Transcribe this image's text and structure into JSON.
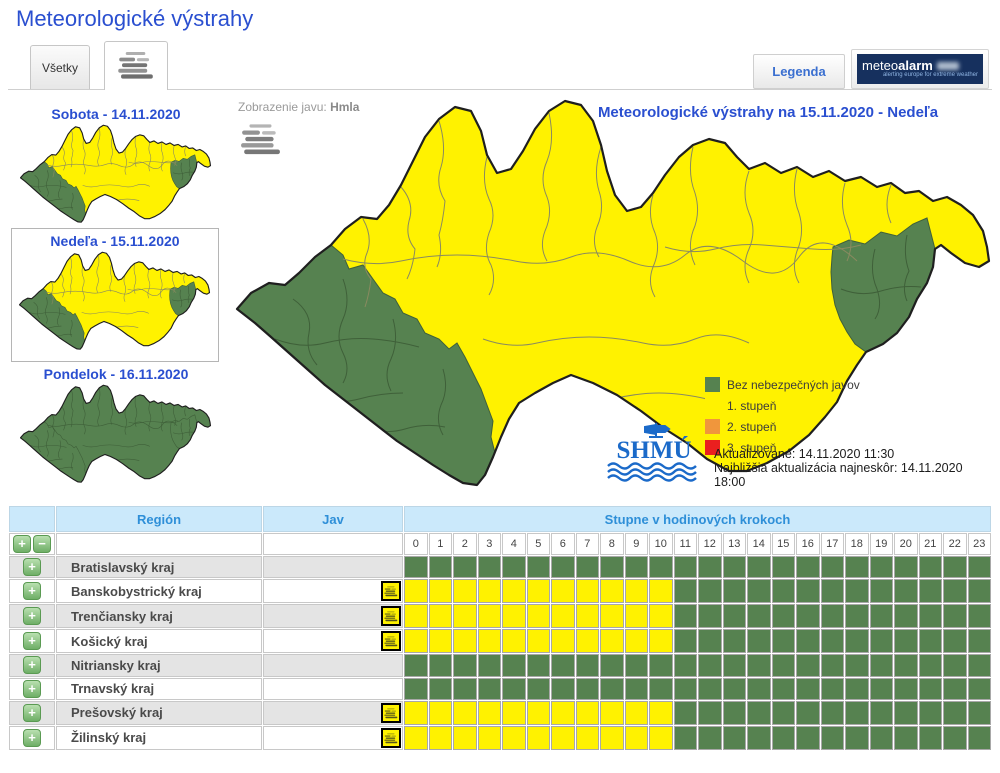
{
  "page_title": "Meteorologické výstrahy",
  "tabs": {
    "all_label": "Všetky",
    "fog_tab": "fog-icon"
  },
  "toolbar": {
    "legend_button": "Legenda",
    "meteoalarm": {
      "word_normal": "meteo",
      "word_bold": "alarm",
      "tagline": "alerting europe for extreme weather"
    }
  },
  "day_maps": [
    {
      "title": "Sobota - 14.11.2020",
      "selected": false,
      "coloring": "warning"
    },
    {
      "title": "Nedeľa - 15.11.2020",
      "selected": true,
      "coloring": "warning"
    },
    {
      "title": "Pondelok - 16.11.2020",
      "selected": false,
      "coloring": "all-green"
    }
  ],
  "phenomenon": {
    "label": "Zobrazenie javu:",
    "value": "Hmla"
  },
  "main_map": {
    "title": "Meteorologické výstrahy na 15.11.2020 - Nedeľa",
    "legend": [
      {
        "label": "Bez nebezpečných javov",
        "color": "#568250"
      },
      {
        "label": "1. stupeň",
        "color": "#fff200"
      },
      {
        "label": "2. stupeň",
        "color": "#f0963c"
      },
      {
        "label": "3. stupeň",
        "color": "#ea1f1f"
      }
    ],
    "updated": "Aktualizované: 14.11.2020 11:30",
    "next_update": "Najbližšia aktualizácia najneskôr: 14.11.2020 18:00",
    "shmu_logo_text": "SHMÚ"
  },
  "table": {
    "headers": {
      "region": "Región",
      "jav": "Jav",
      "hours": "Stupne v hodinových krokoch"
    },
    "hour_labels": [
      "0",
      "1",
      "2",
      "3",
      "4",
      "5",
      "6",
      "7",
      "8",
      "9",
      "10",
      "11",
      "12",
      "13",
      "14",
      "15",
      "16",
      "17",
      "18",
      "19",
      "20",
      "21",
      "22",
      "23"
    ],
    "rows": [
      {
        "region": "Bratislavský kraj",
        "jav": null,
        "hours": [
          "g",
          "g",
          "g",
          "g",
          "g",
          "g",
          "g",
          "g",
          "g",
          "g",
          "g",
          "g",
          "g",
          "g",
          "g",
          "g",
          "g",
          "g",
          "g",
          "g",
          "g",
          "g",
          "g",
          "g"
        ]
      },
      {
        "region": "Banskobystrický kraj",
        "jav": "fog",
        "hours": [
          "y",
          "y",
          "y",
          "y",
          "y",
          "y",
          "y",
          "y",
          "y",
          "y",
          "y",
          "g",
          "g",
          "g",
          "g",
          "g",
          "g",
          "g",
          "g",
          "g",
          "g",
          "g",
          "g",
          "g"
        ]
      },
      {
        "region": "Trenčiansky kraj",
        "jav": "fog",
        "hours": [
          "y",
          "y",
          "y",
          "y",
          "y",
          "y",
          "y",
          "y",
          "y",
          "y",
          "y",
          "g",
          "g",
          "g",
          "g",
          "g",
          "g",
          "g",
          "g",
          "g",
          "g",
          "g",
          "g",
          "g"
        ]
      },
      {
        "region": "Košický kraj",
        "jav": "fog",
        "hours": [
          "y",
          "y",
          "y",
          "y",
          "y",
          "y",
          "y",
          "y",
          "y",
          "y",
          "y",
          "g",
          "g",
          "g",
          "g",
          "g",
          "g",
          "g",
          "g",
          "g",
          "g",
          "g",
          "g",
          "g"
        ]
      },
      {
        "region": "Nitriansky kraj",
        "jav": null,
        "hours": [
          "g",
          "g",
          "g",
          "g",
          "g",
          "g",
          "g",
          "g",
          "g",
          "g",
          "g",
          "g",
          "g",
          "g",
          "g",
          "g",
          "g",
          "g",
          "g",
          "g",
          "g",
          "g",
          "g",
          "g"
        ]
      },
      {
        "region": "Trnavský kraj",
        "jav": null,
        "hours": [
          "g",
          "g",
          "g",
          "g",
          "g",
          "g",
          "g",
          "g",
          "g",
          "g",
          "g",
          "g",
          "g",
          "g",
          "g",
          "g",
          "g",
          "g",
          "g",
          "g",
          "g",
          "g",
          "g",
          "g"
        ]
      },
      {
        "region": "Prešovský kraj",
        "jav": "fog",
        "hours": [
          "y",
          "y",
          "y",
          "y",
          "y",
          "y",
          "y",
          "y",
          "y",
          "y",
          "y",
          "g",
          "g",
          "g",
          "g",
          "g",
          "g",
          "g",
          "g",
          "g",
          "g",
          "g",
          "g",
          "g"
        ]
      },
      {
        "region": "Žilinský kraj",
        "jav": "fog",
        "hours": [
          "y",
          "y",
          "y",
          "y",
          "y",
          "y",
          "y",
          "y",
          "y",
          "y",
          "y",
          "g",
          "g",
          "g",
          "g",
          "g",
          "g",
          "g",
          "g",
          "g",
          "g",
          "g",
          "g",
          "g"
        ]
      }
    ]
  },
  "colors": {
    "yellow": "#fff200",
    "green": "#568250",
    "orange": "#f0963c",
    "red": "#ea1f1f",
    "title": "#2a4fd0",
    "header-bg": "#cbe9fb",
    "header-tx": "#2e8fd8",
    "navy": "#16305e"
  }
}
